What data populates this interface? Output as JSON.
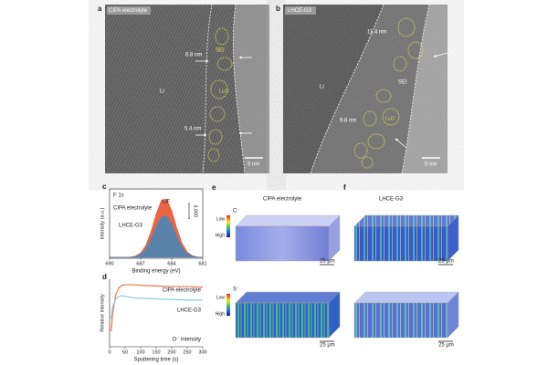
{
  "panels": {
    "a": {
      "letter": "a",
      "label": "CIPA electrolyte",
      "thickness_top": "6.8 nm",
      "sei": "SEI",
      "li2o": "Li₂O",
      "li": "Li",
      "thickness_bottom": "5.4 nm",
      "scale": "5 nm"
    },
    "b": {
      "letter": "b",
      "label": "LHCE-G3",
      "thickness_top": "11.4 nm",
      "sei": "SEI",
      "li": "Li",
      "li2o": "Li₂O",
      "thickness_bottom": "9.8 nm",
      "scale": "5 nm"
    },
    "e": {
      "letter": "e",
      "title": "CIPA electrolyte",
      "ion_top": "C⁻",
      "ion_bottom": "S⁻",
      "low": "Low",
      "high": "High",
      "scale": "25 μm"
    },
    "f": {
      "letter": "f",
      "title": "LHCE-G3",
      "scale": "25 μm"
    }
  },
  "chart_data": [
    {
      "type": "area",
      "panel": "c",
      "title": "F 1s",
      "annotation": "LiF",
      "x": [
        690,
        689.5,
        689,
        688.5,
        688,
        687.5,
        687,
        686.5,
        686,
        685.5,
        685,
        684.5,
        684,
        683.5,
        683,
        682.5,
        682,
        681.5,
        681
      ],
      "series": [
        {
          "name": "CIPA electrolyte",
          "color": "#e8542f",
          "values": [
            200,
            200,
            200,
            210,
            250,
            440,
            1050,
            2580,
            5360,
            8910,
            11670,
            11960,
            9600,
            6040,
            3030,
            1270,
            510,
            270,
            210
          ]
        },
        {
          "name": "LHCE-G3",
          "color": "#4a86b8",
          "values": [
            200,
            200,
            200,
            210,
            240,
            370,
            800,
            1880,
            3860,
            6370,
            8330,
            8530,
            6860,
            4340,
            2210,
            960,
            420,
            250,
            210
          ]
        }
      ],
      "xlim": [
        690,
        681
      ],
      "xticks": [
        690,
        687,
        684,
        681
      ],
      "ylim": [
        0,
        14000
      ],
      "xlabel": "Binding energy (eV)",
      "ylabel": "Intensity (a.u.)",
      "scale_bar": {
        "value": 3000,
        "label": "3,000"
      }
    },
    {
      "type": "line",
      "panel": "d",
      "annotation": "O⁻ intensity",
      "x": [
        5,
        10,
        20,
        30,
        40,
        50,
        75,
        100,
        150,
        200,
        250,
        300
      ],
      "series": [
        {
          "name": "CIPA electrolyte",
          "color": "#e8764f",
          "values": [
            0.25,
            0.55,
            0.85,
            0.96,
            1.0,
            1.01,
            1.01,
            1.0,
            0.99,
            0.98,
            0.98,
            0.97
          ]
        },
        {
          "name": "LHCE-G3",
          "color": "#8cc8e0",
          "values": [
            0.45,
            0.65,
            0.78,
            0.82,
            0.83,
            0.82,
            0.8,
            0.79,
            0.78,
            0.77,
            0.76,
            0.76
          ]
        }
      ],
      "xlim": [
        0,
        300
      ],
      "xticks": [
        0,
        50,
        100,
        150,
        200,
        250,
        300
      ],
      "ylim": [
        0,
        1.1
      ],
      "xlabel": "Sputtering time (s)",
      "ylabel": "Relative intensity"
    }
  ]
}
